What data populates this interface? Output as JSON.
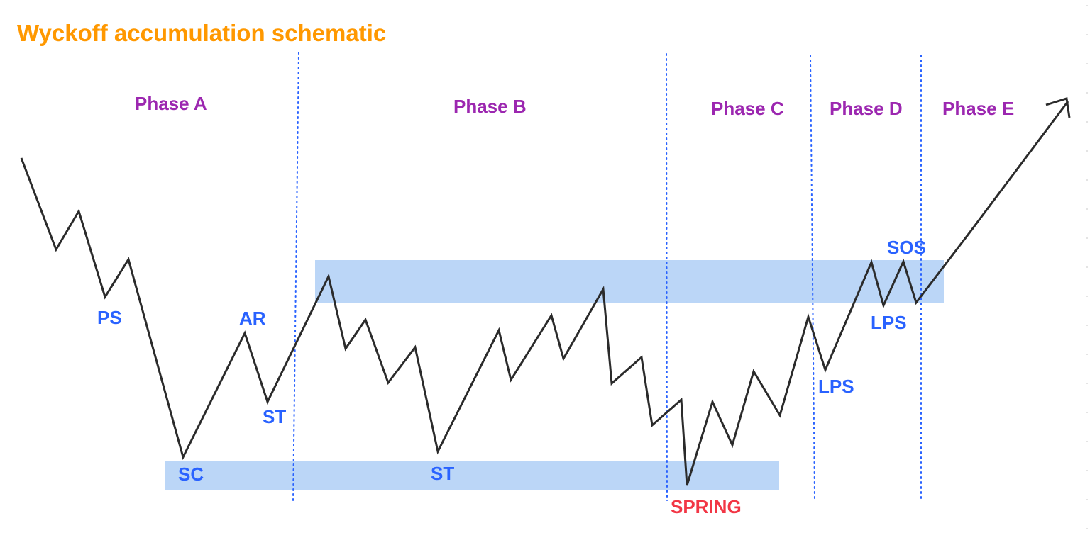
{
  "title": "Wyckoff accumulation schematic",
  "colors": {
    "title": "#ff9800",
    "phase": "#9c27b0",
    "label": "#2962ff",
    "spring": "#f23645",
    "zone": "#bbd6f7",
    "divider": "#2962ff",
    "price_line": "#2b2b2b"
  },
  "phases": {
    "a": "Phase A",
    "b": "Phase B",
    "c": "Phase C",
    "d": "Phase D",
    "e": "Phase E"
  },
  "labels": {
    "ps": "PS",
    "sc": "SC",
    "ar": "AR",
    "st1": "ST",
    "st2": "ST",
    "spring": "SPRING",
    "lps1": "LPS",
    "lps2": "LPS",
    "sos": "SOS"
  }
}
